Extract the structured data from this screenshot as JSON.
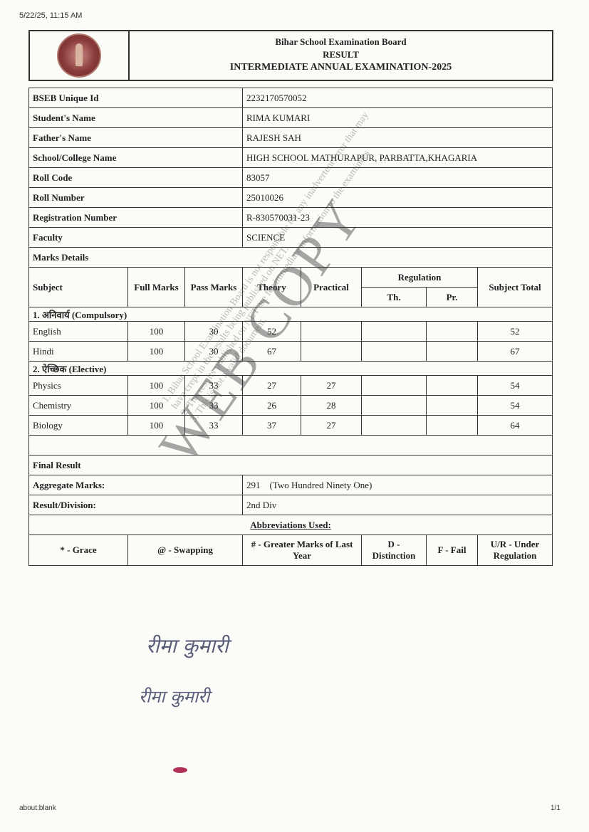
{
  "browser": {
    "datetime": "5/22/25, 11:15 AM",
    "url": "about:blank",
    "page": "1/1"
  },
  "header": {
    "board": "Bihar School Examination Board",
    "result": "RESULT",
    "exam": "INTERMEDIATE ANNUAL EXAMINATION-2025",
    "logo": "bseb-seal"
  },
  "info": [
    {
      "label": "BSEB Unique Id",
      "value": "2232170570052"
    },
    {
      "label": "Student's Name",
      "value": "RIMA KUMARI"
    },
    {
      "label": "Father's Name",
      "value": "RAJESH SAH"
    },
    {
      "label": "School/College Name",
      "value": "HIGH SCHOOL MATHURAPUR, PARBATTA,KHAGARIA"
    },
    {
      "label": "Roll Code",
      "value": "83057"
    },
    {
      "label": "Roll Number",
      "value": "25010026"
    },
    {
      "label": "Registration Number",
      "value": "R-830570031-23"
    },
    {
      "label": "Faculty",
      "value": "SCIENCE"
    }
  ],
  "marks": {
    "title": "Marks Details",
    "headers": {
      "subject": "Subject",
      "full": "Full Marks",
      "pass": "Pass Marks",
      "theory": "Theory",
      "practical": "Practical",
      "regulation": "Regulation",
      "th": "Th.",
      "pr": "Pr.",
      "total": "Subject Total"
    },
    "sections": [
      {
        "name": "1. अनिवार्य (Compulsory)",
        "rows": [
          {
            "subject": "English",
            "full": "100",
            "pass": "30",
            "theory": "52",
            "practical": "",
            "th": "",
            "pr": "",
            "total": "52"
          },
          {
            "subject": "Hindi",
            "full": "100",
            "pass": "30",
            "theory": "67",
            "practical": "",
            "th": "",
            "pr": "",
            "total": "67"
          }
        ]
      },
      {
        "name": "2. ऐच्छिक (Elective)",
        "rows": [
          {
            "subject": "Physics",
            "full": "100",
            "pass": "33",
            "theory": "27",
            "practical": "27",
            "th": "",
            "pr": "",
            "total": "54"
          },
          {
            "subject": "Chemistry",
            "full": "100",
            "pass": "33",
            "theory": "26",
            "practical": "28",
            "th": "",
            "pr": "",
            "total": "54"
          },
          {
            "subject": "Biology",
            "full": "100",
            "pass": "33",
            "theory": "37",
            "practical": "27",
            "th": "",
            "pr": "",
            "total": "64"
          }
        ]
      }
    ]
  },
  "final": {
    "title": "Final Result",
    "aggregate_label": "Aggregate Marks:",
    "aggregate_value": "291    (Two Hundred Ninety One)",
    "division_label": "Result/Division:",
    "division_value": "2nd Div"
  },
  "abbrev": {
    "title": "Abbreviations Used:",
    "items": [
      "* - Grace",
      "@ - Swapping",
      "# - Greater Marks of Last Year",
      "D - Distinction",
      "F - Fail",
      "U/R - Under Regulation"
    ]
  },
  "watermark": {
    "text": "WEB COPY",
    "notes": [
      "1. Bihar School Examination Board is not responsible for any inadvertent error that may",
      "have crept in the results being published on NET.",
      "2. The results published on NET are for immediate information to the examinees",
      "3. This is not a valid document."
    ]
  },
  "signatures": [
    "रीमा कुमारी",
    "रीमा कुमारी"
  ]
}
